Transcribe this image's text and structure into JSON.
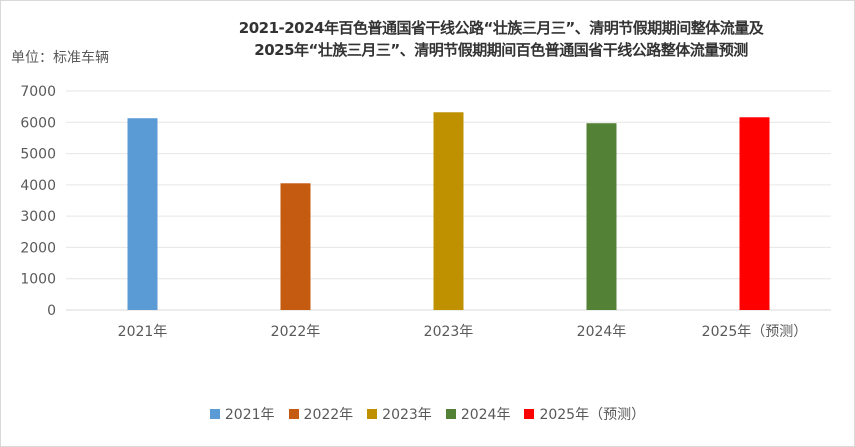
{
  "chart_data": {
    "type": "bar",
    "title": "2021-2024年百色普通国省干线公路“壮族三月三”、清明节假期期间整体流量及2025年“壮族三月三”、清明节假期期间百色普通国省干线公路整体流量预测",
    "title_lines": [
      "2021-2024年百色普通国省干线公路“壮族三月三”、清明节假期期间整体流量及",
      "2025年“壮族三月三”、清明节假期期间百色普通国省干线公路整体流量预测"
    ],
    "ylabel": "单位：标准车辆",
    "categories": [
      "2021年",
      "2022年",
      "2023年",
      "2024年",
      "2025年（预测）"
    ],
    "values": [
      6130,
      4050,
      6320,
      5970,
      6160
    ],
    "colors": [
      "#5b9bd5",
      "#c55a11",
      "#bf9000",
      "#538135",
      "#ff0000"
    ],
    "ylim": [
      0,
      7000
    ],
    "yticks": [
      0,
      1000,
      2000,
      3000,
      4000,
      5000,
      6000,
      7000
    ],
    "grid": true,
    "legend": "bottom"
  }
}
